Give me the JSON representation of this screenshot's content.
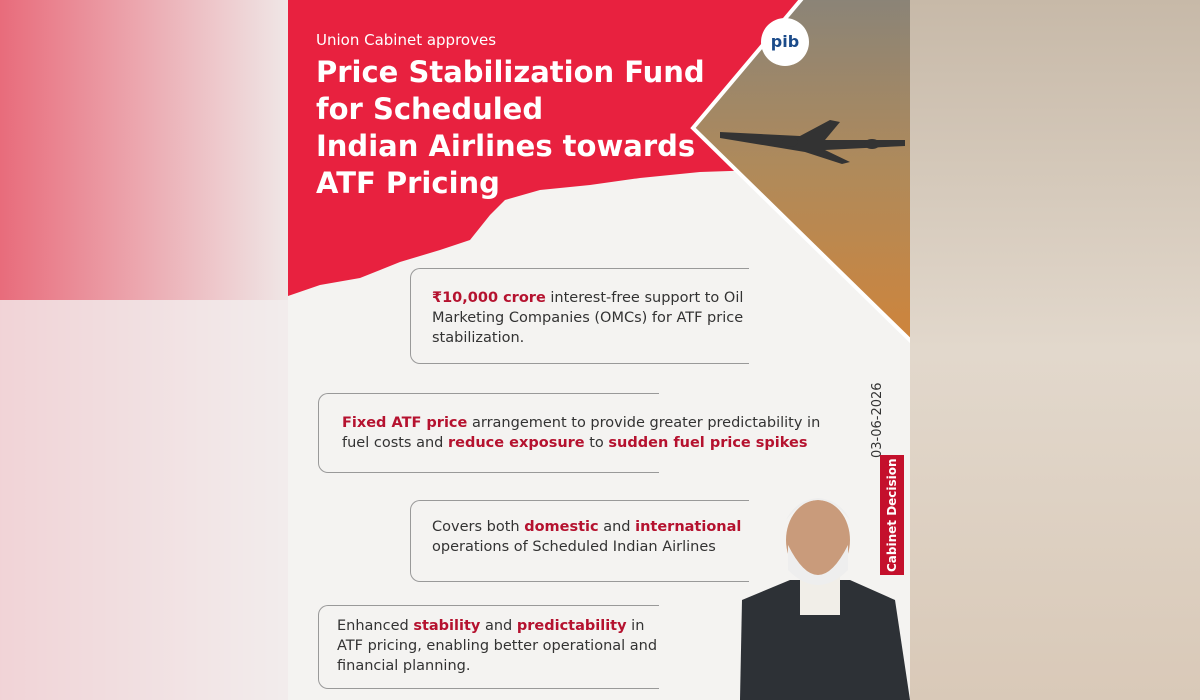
{
  "header": {
    "kicker": "Union Cabinet approves",
    "title_lines": [
      "Price Stabilization Fund",
      "for Scheduled",
      "Indian Airlines towards",
      "ATF Pricing"
    ]
  },
  "points": [
    {
      "segments": [
        {
          "text": "₹10,000 crore",
          "highlight": true
        },
        {
          "text": " interest-free support to Oil Marketing Companies (OMCs) for ATF price stabilization.",
          "highlight": false
        }
      ]
    },
    {
      "segments": [
        {
          "text": "Fixed ATF price",
          "highlight": true
        },
        {
          "text": " arrangement to provide greater predictability in fuel costs and ",
          "highlight": false
        },
        {
          "text": "reduce exposure",
          "highlight": true
        },
        {
          "text": " to ",
          "highlight": false
        },
        {
          "text": "sudden fuel price spikes",
          "highlight": true
        }
      ]
    },
    {
      "segments": [
        {
          "text": "Covers both ",
          "highlight": false
        },
        {
          "text": "domestic",
          "highlight": true
        },
        {
          "text": " and ",
          "highlight": false
        },
        {
          "text": "international",
          "highlight": true
        },
        {
          "text": " operations of Scheduled Indian Airlines",
          "highlight": false
        }
      ]
    },
    {
      "segments": [
        {
          "text": "Enhanced ",
          "highlight": false
        },
        {
          "text": "stability",
          "highlight": true
        },
        {
          "text": " and ",
          "highlight": false
        },
        {
          "text": "predictability",
          "highlight": true
        },
        {
          "text": " in ATF pricing, enabling better operational and financial planning.",
          "highlight": false
        }
      ]
    }
  ],
  "side": {
    "date": "03-06-2026",
    "tag": "Cabinet Decision"
  }
}
